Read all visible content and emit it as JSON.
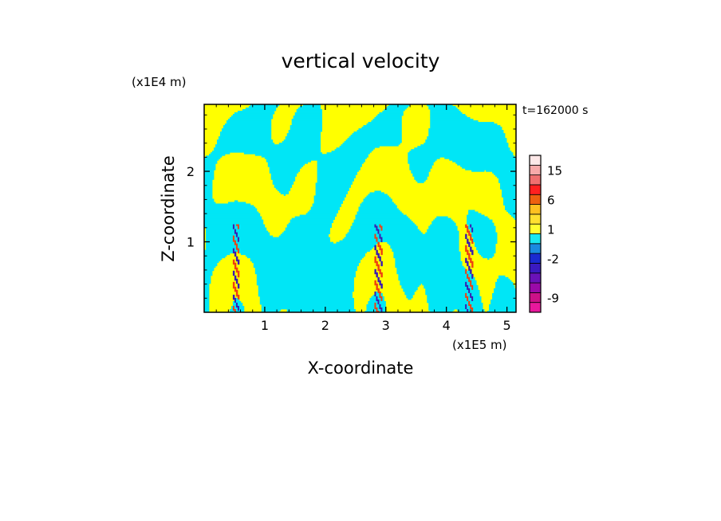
{
  "chart_data": {
    "type": "heatmap",
    "title": "vertical velocity",
    "xlabel": "X-coordinate",
    "ylabel": "Z-coordinate",
    "x_unit": "(x1E5 m)",
    "y_unit": "(x1E4 m)",
    "time_label": "t=162000 s",
    "xlim": [
      0,
      5.15
    ],
    "ylim": [
      0,
      2.95
    ],
    "x_ticks": [
      {
        "value": 1,
        "label": "1"
      },
      {
        "value": 2,
        "label": "2"
      },
      {
        "value": 3,
        "label": "3"
      },
      {
        "value": 4,
        "label": "4"
      },
      {
        "value": 5,
        "label": "5"
      }
    ],
    "y_ticks": [
      {
        "value": 1,
        "label": "1"
      },
      {
        "value": 2,
        "label": "2"
      }
    ],
    "colorbar": {
      "levels": [
        {
          "color": "#e8189c"
        },
        {
          "color": "#cc1188",
          "label": "-9"
        },
        {
          "color": "#9a0aa8"
        },
        {
          "color": "#6a12b8"
        },
        {
          "color": "#3a1ac0"
        },
        {
          "color": "#1a2ad0",
          "label": "-2"
        },
        {
          "color": "#1a8ae0"
        },
        {
          "color": "#1ae8f0"
        },
        {
          "color": "#ffff30",
          "label": "1"
        },
        {
          "color": "#ffe030"
        },
        {
          "color": "#ffc020"
        },
        {
          "color": "#ee6010",
          "label": "6"
        },
        {
          "color": "#ff2020"
        },
        {
          "color": "#f07070"
        },
        {
          "color": "#f8aaaa",
          "label": "15"
        },
        {
          "color": "#fde8e8"
        }
      ],
      "label_values": [
        "15",
        "6",
        "1",
        "-2",
        "-9"
      ]
    },
    "field_colors": {
      "positive": "#ffff00",
      "negative": "#00e6f6",
      "strong_positive": "#ee4010",
      "strong_negative": "#3a1ab0"
    },
    "grid": false,
    "legend": "colorbar-right"
  }
}
